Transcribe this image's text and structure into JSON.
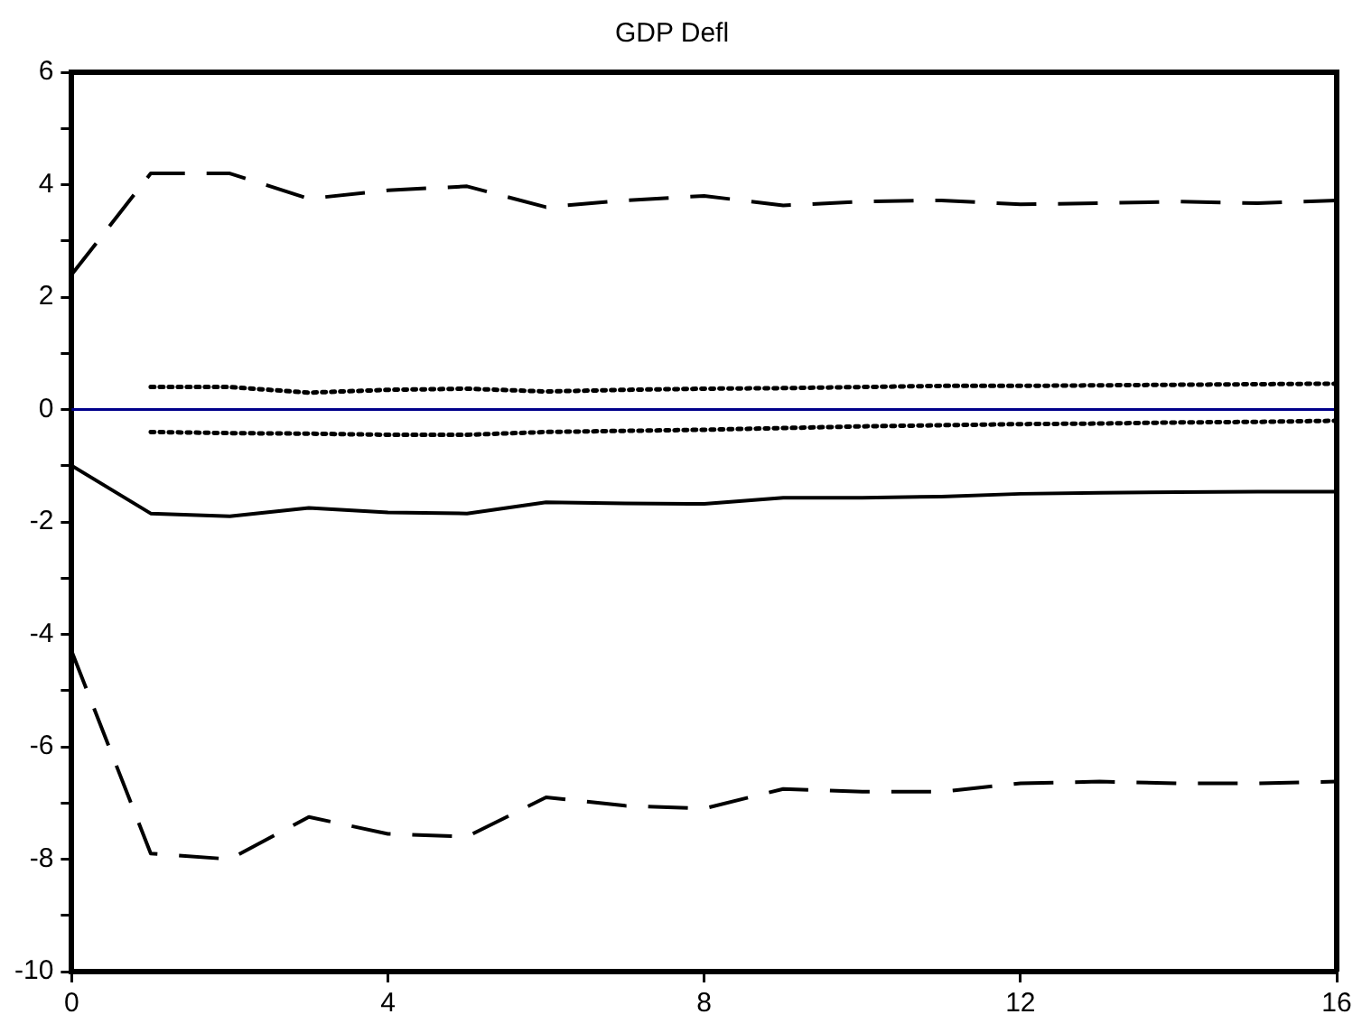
{
  "chart_data": {
    "type": "line",
    "title": "GDP Defl",
    "x": [
      0,
      1,
      2,
      3,
      4,
      5,
      6,
      7,
      8,
      9,
      10,
      11,
      12,
      13,
      14,
      15,
      16
    ],
    "series": [
      {
        "color": "#000000",
        "line_style": "solid",
        "values": [
          -1.0,
          -1.85,
          -1.9,
          -1.75,
          -1.83,
          -1.85,
          -1.65,
          -1.67,
          -1.68,
          -1.57,
          -1.57,
          -1.55,
          -1.5,
          -1.48,
          -1.47,
          -1.46,
          -1.46
        ]
      },
      {
        "color": "#000000",
        "line_style": "dashed",
        "values": [
          2.4,
          4.2,
          4.2,
          3.75,
          3.9,
          3.97,
          3.6,
          3.72,
          3.8,
          3.63,
          3.7,
          3.72,
          3.65,
          3.67,
          3.7,
          3.67,
          3.72
        ]
      },
      {
        "color": "#000000",
        "line_style": "dashed",
        "values": [
          -4.3,
          -7.9,
          -8.0,
          -7.25,
          -7.55,
          -7.6,
          -6.9,
          -7.05,
          -7.1,
          -6.75,
          -6.8,
          -6.8,
          -6.65,
          -6.62,
          -6.65,
          -6.65,
          -6.62
        ]
      },
      {
        "color": "#000000",
        "line_style": "dotted",
        "x": [
          1,
          2,
          3,
          4,
          5,
          6,
          7,
          8,
          9,
          10,
          11,
          12,
          13,
          14,
          15,
          16
        ],
        "values": [
          0.4,
          0.4,
          0.3,
          0.35,
          0.37,
          0.32,
          0.35,
          0.37,
          0.38,
          0.4,
          0.42,
          0.42,
          0.43,
          0.44,
          0.45,
          0.46
        ]
      },
      {
        "color": "#000000",
        "line_style": "dotted",
        "x": [
          1,
          2,
          3,
          4,
          5,
          6,
          7,
          8,
          9,
          10,
          11,
          12,
          13,
          14,
          15,
          16
        ],
        "values": [
          -0.4,
          -0.42,
          -0.43,
          -0.45,
          -0.45,
          -0.4,
          -0.38,
          -0.36,
          -0.33,
          -0.3,
          -0.28,
          -0.26,
          -0.25,
          -0.23,
          -0.22,
          -0.2
        ]
      }
    ],
    "ref_lines": [
      {
        "axis": "y",
        "value": 0,
        "color": "#00008b"
      }
    ],
    "xlim": [
      0,
      16
    ],
    "xticks": [
      0,
      4,
      8,
      12,
      16
    ],
    "ylim": [
      -10,
      6
    ],
    "yticks": [
      -10,
      {
        "value": -9,
        "label": null
      },
      -8,
      {
        "value": -7,
        "label": null
      },
      -6,
      {
        "value": -5,
        "label": null
      },
      -4,
      {
        "value": -3,
        "label": null
      },
      -2,
      {
        "value": -1,
        "label": null
      },
      0,
      {
        "value": 1,
        "label": null
      },
      2,
      {
        "value": 3,
        "label": null
      },
      4,
      {
        "value": 5,
        "label": null
      },
      6
    ],
    "grid": false,
    "legend": false,
    "marker": "none"
  }
}
